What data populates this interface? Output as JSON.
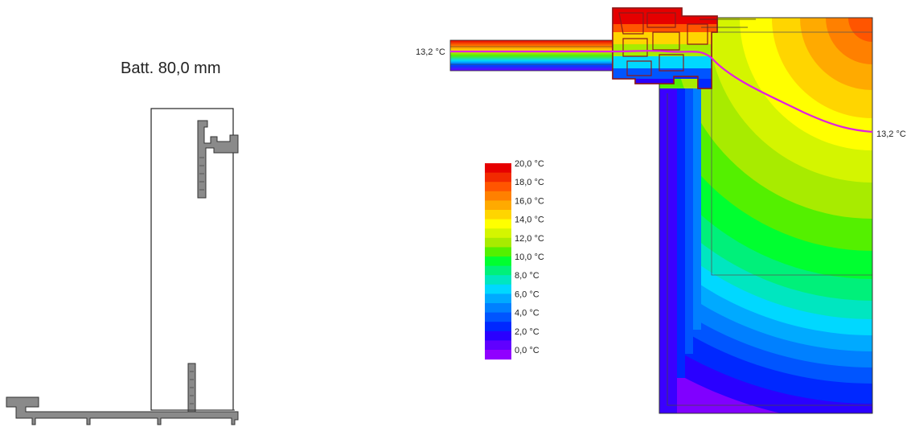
{
  "left_panel": {
    "title": "Batt. 80,0 mm"
  },
  "thermal": {
    "isotherm_left_label": "13,2 °C",
    "isotherm_right_label": "13,2 °C",
    "isotherm_color": "#e020e0",
    "legend": [
      {
        "label": "20,0 °C",
        "color": "#e60000"
      },
      {
        "label": "",
        "color": "#f22a00"
      },
      {
        "label": "18,0 °C",
        "color": "#ff5500"
      },
      {
        "label": "",
        "color": "#ff8000"
      },
      {
        "label": "16,0 °C",
        "color": "#ffaa00"
      },
      {
        "label": "",
        "color": "#ffd500"
      },
      {
        "label": "14,0 °C",
        "color": "#ffff00"
      },
      {
        "label": "",
        "color": "#d4f500"
      },
      {
        "label": "12,0 °C",
        "color": "#a8eb00"
      },
      {
        "label": "",
        "color": "#54f000"
      },
      {
        "label": "10,0 °C",
        "color": "#00ff30"
      },
      {
        "label": "",
        "color": "#00f07a"
      },
      {
        "label": "8,0 °C",
        "color": "#00e6c0"
      },
      {
        "label": "",
        "color": "#00d8ff"
      },
      {
        "label": "6,0 °C",
        "color": "#00aaff"
      },
      {
        "label": "",
        "color": "#0080ff"
      },
      {
        "label": "4,0 °C",
        "color": "#0055ff"
      },
      {
        "label": "",
        "color": "#0028ff"
      },
      {
        "label": "2,0 °C",
        "color": "#2a00ff"
      },
      {
        "label": "",
        "color": "#6000ff"
      },
      {
        "label": "0,0 °C",
        "color": "#9000ff"
      }
    ]
  }
}
